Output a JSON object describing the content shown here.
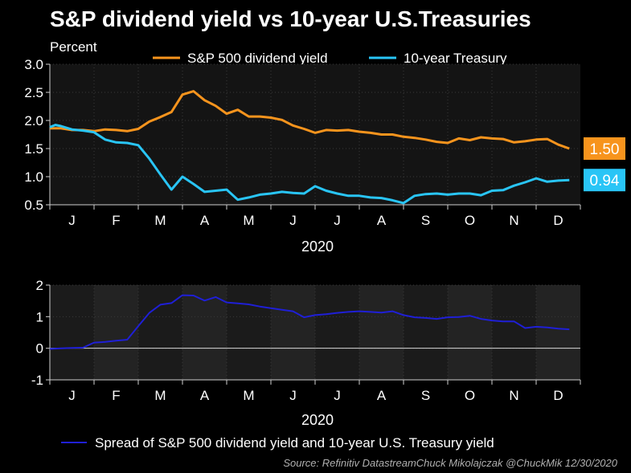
{
  "title": "S&P dividend yield vs 10-year U.S.Treasuries",
  "source": "Source: Refinitiv DatastreamChuck Mikolajczak @ChuckMik 12/30/2020",
  "colors": {
    "sp500": "#f7941d",
    "treasury": "#29c5f6",
    "spread": "#1f1fd6",
    "background": "#000000",
    "panel_top": "#141414",
    "panel_bottom": "#1b1b1b"
  },
  "chart_data": [
    {
      "type": "line",
      "title": "S&P dividend yield vs 10-year U.S.Treasuries",
      "ylabel": "Percent",
      "xlabel": "2020",
      "ylim": [
        0.5,
        3.0
      ],
      "yticks": [
        "3.0",
        "2.5",
        "2.0",
        "1.5",
        "1.0",
        "0.5"
      ],
      "ytick_values": [
        3.0,
        2.5,
        2.0,
        1.5,
        1.0,
        0.5
      ],
      "months": [
        "J",
        "F",
        "M",
        "A",
        "M",
        "J",
        "J",
        "A",
        "S",
        "O",
        "N",
        "D"
      ],
      "x_range": [
        0,
        48
      ],
      "legend_position": "top",
      "series": [
        {
          "name": "S&P 500 dividend yield",
          "last_label": "1.50",
          "x": [
            0,
            1,
            2,
            3,
            4,
            5,
            6,
            7,
            8,
            9,
            10,
            11,
            12,
            13,
            14,
            15,
            16,
            17,
            18,
            19,
            20,
            21,
            22,
            23,
            24,
            25,
            26,
            27,
            28,
            29,
            30,
            31,
            32,
            33,
            34,
            35,
            36,
            37,
            38,
            39,
            40,
            41,
            42,
            43,
            44,
            45,
            46,
            47
          ],
          "values": [
            1.86,
            1.86,
            1.83,
            1.83,
            1.81,
            1.84,
            1.83,
            1.81,
            1.85,
            1.98,
            2.06,
            2.15,
            2.46,
            2.52,
            2.36,
            2.26,
            2.12,
            2.19,
            2.07,
            2.07,
            2.05,
            2.01,
            1.91,
            1.85,
            1.78,
            1.83,
            1.82,
            1.83,
            1.8,
            1.78,
            1.75,
            1.75,
            1.71,
            1.69,
            1.66,
            1.62,
            1.6,
            1.68,
            1.65,
            1.7,
            1.68,
            1.67,
            1.61,
            1.63,
            1.66,
            1.67,
            1.57,
            1.5
          ]
        },
        {
          "name": "10-year Treasury",
          "last_label": "0.94",
          "x": [
            0,
            0.5,
            1,
            2,
            3,
            4,
            5,
            6,
            7,
            8,
            9,
            10,
            11,
            12,
            13,
            14,
            15,
            16,
            17,
            18,
            19,
            20,
            21,
            22,
            23,
            24,
            25,
            26,
            27,
            28,
            29,
            30,
            31,
            32,
            33,
            34,
            35,
            36,
            37,
            38,
            39,
            40,
            41,
            42,
            43,
            44,
            45,
            46,
            47
          ],
          "values": [
            1.88,
            1.92,
            1.9,
            1.84,
            1.82,
            1.79,
            1.66,
            1.61,
            1.6,
            1.56,
            1.32,
            1.04,
            0.77,
            1.0,
            0.87,
            0.73,
            0.75,
            0.77,
            0.59,
            0.63,
            0.68,
            0.7,
            0.73,
            0.71,
            0.7,
            0.83,
            0.75,
            0.7,
            0.66,
            0.66,
            0.63,
            0.62,
            0.58,
            0.53,
            0.66,
            0.69,
            0.7,
            0.68,
            0.7,
            0.7,
            0.67,
            0.75,
            0.76,
            0.84,
            0.9,
            0.97,
            0.91,
            0.93,
            0.94
          ]
        }
      ]
    },
    {
      "type": "line",
      "xlabel": "2020",
      "ylim": [
        -1,
        2
      ],
      "yticks": [
        "2",
        "1",
        "0",
        "-1"
      ],
      "ytick_values": [
        2,
        1,
        0,
        -1
      ],
      "months": [
        "J",
        "F",
        "M",
        "A",
        "M",
        "J",
        "J",
        "A",
        "S",
        "O",
        "N",
        "D"
      ],
      "x_range": [
        0,
        48
      ],
      "legend_position": "bottom",
      "series": [
        {
          "name": "Spread of S&P 500 dividend yield and 10-year U.S. Treasury yield",
          "x": [
            0,
            1,
            2,
            3,
            4,
            5,
            6,
            7,
            8,
            9,
            10,
            11,
            12,
            13,
            14,
            15,
            16,
            17,
            18,
            19,
            20,
            21,
            22,
            23,
            24,
            25,
            26,
            27,
            28,
            29,
            30,
            31,
            32,
            33,
            34,
            35,
            36,
            37,
            38,
            39,
            40,
            41,
            42,
            43,
            44,
            45,
            46,
            47
          ],
          "values": [
            -0.02,
            0.0,
            0.01,
            0.02,
            0.18,
            0.2,
            0.24,
            0.27,
            0.7,
            1.12,
            1.38,
            1.43,
            1.68,
            1.67,
            1.51,
            1.62,
            1.45,
            1.42,
            1.39,
            1.32,
            1.27,
            1.22,
            1.17,
            0.98,
            1.05,
            1.08,
            1.12,
            1.15,
            1.17,
            1.15,
            1.13,
            1.17,
            1.05,
            0.98,
            0.96,
            0.93,
            0.98,
            0.99,
            1.03,
            0.93,
            0.88,
            0.85,
            0.85,
            0.64,
            0.68,
            0.66,
            0.62,
            0.6
          ]
        }
      ]
    }
  ]
}
